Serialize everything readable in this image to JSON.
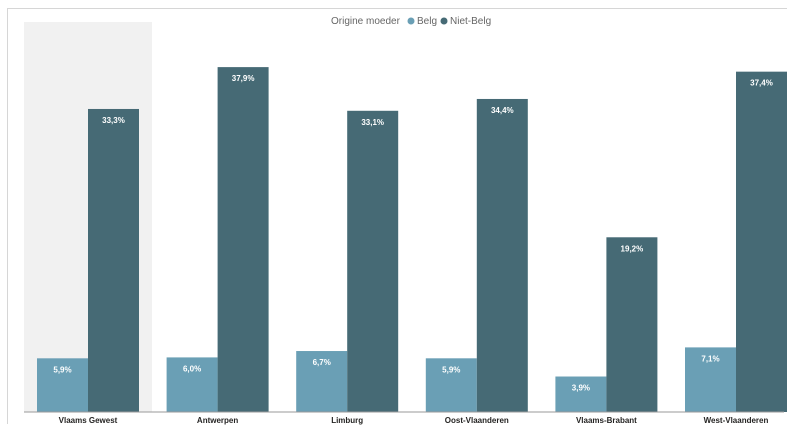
{
  "colors": {
    "belg": "#6a9fb5",
    "niet_belg": "#466a75",
    "highlight_band": "#f1f1f1",
    "axis_line": "#9a9a9a"
  },
  "legend": {
    "title": "Origine moeder",
    "items": [
      {
        "label": "Belg",
        "color": "#6a9fb5"
      },
      {
        "label": "Niet-Belg",
        "color": "#466a75"
      }
    ]
  },
  "chart_data": {
    "type": "bar",
    "categories": [
      "Vlaams Gewest",
      "Antwerpen",
      "Limburg",
      "Oost-Vlaanderen",
      "Vlaams-Brabant",
      "West-Vlaanderen"
    ],
    "series": [
      {
        "name": "Belg",
        "values": [
          5.9,
          6.0,
          6.7,
          5.9,
          3.9,
          7.1
        ],
        "labels": [
          "5,9%",
          "6,0%",
          "6,7%",
          "5,9%",
          "3,9%",
          "7,1%"
        ]
      },
      {
        "name": "Niet-Belg",
        "values": [
          33.3,
          37.9,
          33.1,
          34.4,
          19.2,
          37.4
        ],
        "labels": [
          "33,3%",
          "37,9%",
          "33,1%",
          "34,4%",
          "19,2%",
          "37,4%"
        ]
      }
    ],
    "ylim": [
      0,
      40
    ],
    "highlighted_category": "Vlaams Gewest",
    "legend_position": "top-center",
    "grid": false,
    "xlabel": "",
    "ylabel": ""
  }
}
